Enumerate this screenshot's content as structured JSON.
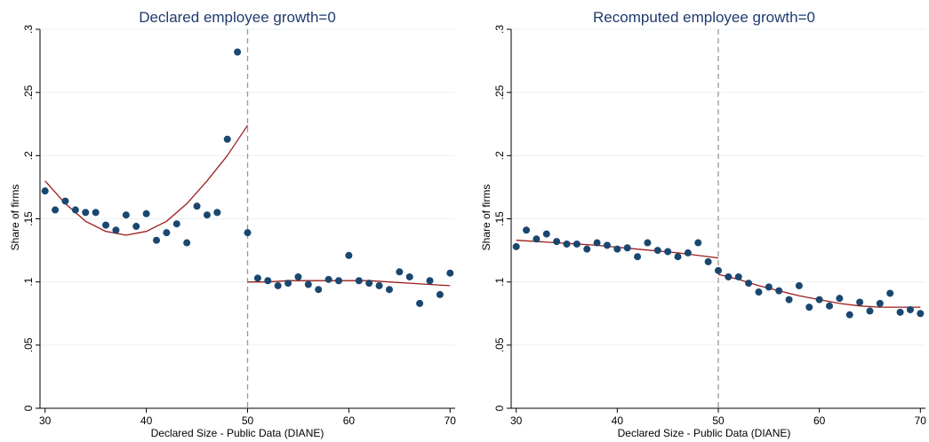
{
  "colors": {
    "background": "#ffffff",
    "title": "#1f3b6e",
    "points": "#1a476f",
    "fit": "#9b1c1c",
    "grid": "#eaf0f3",
    "axis": "#000000",
    "cutoff": "#999999"
  },
  "chart_data": [
    {
      "type": "scatter",
      "title": "Declared employee growth=0",
      "xlabel": "Declared Size - Public Data (DIANE)",
      "ylabel": "Share of firms",
      "xlim": [
        29.5,
        70.5
      ],
      "ylim": [
        0,
        0.3
      ],
      "xticks": [
        30,
        40,
        50,
        60,
        70
      ],
      "xtick_labels": [
        "30",
        "40",
        "50",
        "60",
        "70"
      ],
      "yticks": [
        0,
        0.05,
        0.1,
        0.15,
        0.2,
        0.25,
        0.3
      ],
      "ytick_labels": [
        "0",
        ".05",
        ".1",
        ".15",
        ".2",
        ".25",
        ".3"
      ],
      "grid": true,
      "cutoff_x": 50,
      "x": [
        30,
        31,
        32,
        33,
        34,
        35,
        36,
        37,
        38,
        39,
        40,
        41,
        42,
        43,
        44,
        45,
        46,
        47,
        48,
        49,
        50,
        51,
        52,
        53,
        54,
        55,
        56,
        57,
        58,
        59,
        60,
        61,
        62,
        63,
        64,
        65,
        66,
        67,
        68,
        69,
        70
      ],
      "y": [
        0.172,
        0.157,
        0.164,
        0.157,
        0.155,
        0.155,
        0.145,
        0.141,
        0.153,
        0.144,
        0.154,
        0.133,
        0.139,
        0.146,
        0.131,
        0.16,
        0.153,
        0.155,
        0.213,
        0.282,
        0.139,
        0.103,
        0.101,
        0.097,
        0.099,
        0.104,
        0.098,
        0.094,
        0.102,
        0.101,
        0.121,
        0.101,
        0.099,
        0.097,
        0.094,
        0.108,
        0.104,
        0.083,
        0.101,
        0.09,
        0.107
      ],
      "fits": [
        {
          "x": [
            30,
            32,
            34,
            36,
            38,
            40,
            42,
            44,
            46,
            48,
            50
          ],
          "y": [
            0.18,
            0.162,
            0.148,
            0.14,
            0.137,
            0.14,
            0.148,
            0.162,
            0.18,
            0.2,
            0.224
          ]
        },
        {
          "x": [
            50,
            52,
            54,
            56,
            58,
            60,
            62,
            64,
            66,
            68,
            70
          ],
          "y": [
            0.1,
            0.1,
            0.101,
            0.101,
            0.101,
            0.101,
            0.101,
            0.1,
            0.099,
            0.098,
            0.097
          ]
        }
      ]
    },
    {
      "type": "scatter",
      "title": "Recomputed employee growth=0",
      "xlabel": "Declared Size - Public Data (DIANE)",
      "ylabel": "Share of firms",
      "xlim": [
        29.5,
        70.5
      ],
      "ylim": [
        0,
        0.3
      ],
      "xticks": [
        30,
        40,
        50,
        60,
        70
      ],
      "xtick_labels": [
        "30",
        "40",
        "50",
        "60",
        "70"
      ],
      "yticks": [
        0,
        0.05,
        0.1,
        0.15,
        0.2,
        0.25,
        0.3
      ],
      "ytick_labels": [
        "0",
        ".05",
        ".1",
        ".15",
        ".2",
        ".25",
        ".3"
      ],
      "grid": true,
      "cutoff_x": 50,
      "x": [
        30,
        31,
        32,
        33,
        34,
        35,
        36,
        37,
        38,
        39,
        40,
        41,
        42,
        43,
        44,
        45,
        46,
        47,
        48,
        49,
        50,
        51,
        52,
        53,
        54,
        55,
        56,
        57,
        58,
        59,
        60,
        61,
        62,
        63,
        64,
        65,
        66,
        67,
        68,
        69,
        70
      ],
      "y": [
        0.128,
        0.141,
        0.134,
        0.138,
        0.132,
        0.13,
        0.13,
        0.126,
        0.131,
        0.129,
        0.126,
        0.127,
        0.12,
        0.131,
        0.125,
        0.124,
        0.12,
        0.123,
        0.131,
        0.116,
        0.109,
        0.104,
        0.104,
        0.099,
        0.092,
        0.096,
        0.093,
        0.086,
        0.097,
        0.08,
        0.086,
        0.081,
        0.087,
        0.074,
        0.084,
        0.077,
        0.083,
        0.091,
        0.076,
        0.078,
        0.075
      ],
      "fits": [
        {
          "x": [
            30,
            34,
            38,
            42,
            46,
            50
          ],
          "y": [
            0.133,
            0.131,
            0.129,
            0.126,
            0.123,
            0.119
          ]
        },
        {
          "x": [
            50,
            52,
            54,
            56,
            58,
            60,
            62,
            64,
            66,
            68,
            70
          ],
          "y": [
            0.106,
            0.102,
            0.097,
            0.093,
            0.089,
            0.086,
            0.083,
            0.081,
            0.08,
            0.08,
            0.08
          ]
        }
      ]
    }
  ]
}
